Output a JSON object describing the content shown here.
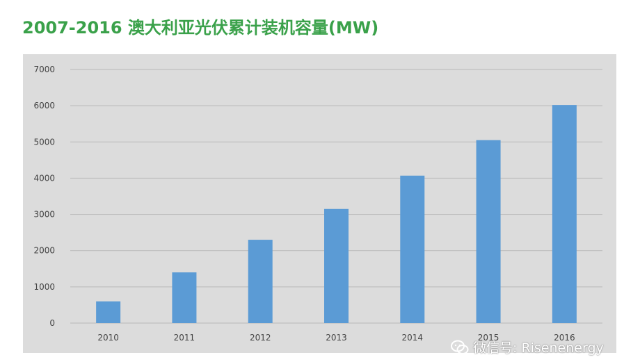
{
  "title": "2007-2016 澳大利亚光伏累计装机容量(MW)",
  "watermark": {
    "text": "微信号: Risenenergy",
    "icon": "wechat-icon"
  },
  "chart_data": {
    "type": "bar",
    "title": "2007-2016 澳大利亚光伏累计装机容量(MW)",
    "xlabel": "",
    "ylabel": "",
    "categories": [
      "2010",
      "2011",
      "2012",
      "2013",
      "2014",
      "2015",
      "2016"
    ],
    "values": [
      600,
      1400,
      2300,
      3150,
      4070,
      5050,
      6020
    ],
    "ylim": [
      0,
      7000
    ],
    "yticks": [
      0,
      1000,
      2000,
      3000,
      4000,
      5000,
      6000,
      7000
    ],
    "grid": true,
    "legend": "none",
    "bar_color": "#5b9bd5",
    "background": "#dcdcdc",
    "title_color": "#3aa14a"
  }
}
